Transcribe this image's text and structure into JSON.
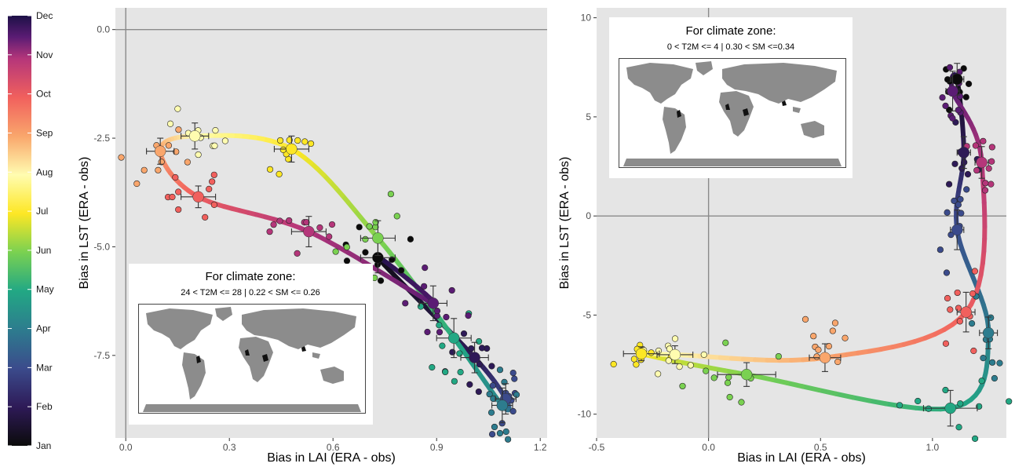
{
  "colorbar": {
    "labels": [
      "Jan",
      "Feb",
      "Mar",
      "Apr",
      "May",
      "Jun",
      "Jul",
      "Aug",
      "Sep",
      "Oct",
      "Nov",
      "Dec"
    ],
    "palette": [
      "#0b0b0b",
      "#2e1a57",
      "#3b4b8c",
      "#2d7c8e",
      "#22a884",
      "#7ad151",
      "#fde725",
      "#fffcb0",
      "#f9a66c",
      "#f1605d",
      "#b5367a",
      "#5b1c74",
      "#1d1147"
    ]
  },
  "chart_data": [
    {
      "type": "scatter",
      "xlabel": "Bias in LAI (ERA - obs)",
      "ylabel": "Bias in LST (ERA - obs)",
      "xlim": [
        -0.03,
        1.22
      ],
      "ylim": [
        -9.4,
        0.5
      ],
      "xticks": [
        "0.0",
        "0.3",
        "0.6",
        "0.9",
        "1.2"
      ],
      "xtick_values": [
        0.0,
        0.3,
        0.6,
        0.9,
        1.2
      ],
      "yticks": [
        "0.0",
        "-2.5",
        "-5.0",
        "-7.5"
      ],
      "ytick_values": [
        0.0,
        -2.5,
        -5.0,
        -7.5
      ],
      "inset": {
        "title": "For climate zone:",
        "subtitle": "24 < T2M <= 28 | 0.22 < SM <= 0.26"
      },
      "monthly_means": [
        {
          "month": "Jan",
          "x": 0.73,
          "y": -5.25,
          "xerr": 0.05,
          "yerr": 0.35
        },
        {
          "month": "Feb",
          "x": 1.01,
          "y": -7.55,
          "xerr": 0.04,
          "yerr": 0.35
        },
        {
          "month": "Mar",
          "x": 1.1,
          "y": -8.5,
          "xerr": 0.03,
          "yerr": 0.35
        },
        {
          "month": "Apr",
          "x": 1.09,
          "y": -8.65,
          "xerr": 0.03,
          "yerr": 0.4
        },
        {
          "month": "May",
          "x": 0.95,
          "y": -7.1,
          "xerr": 0.05,
          "yerr": 0.45
        },
        {
          "month": "Jun",
          "x": 0.73,
          "y": -4.8,
          "xerr": 0.05,
          "yerr": 0.4
        },
        {
          "month": "Jul",
          "x": 0.48,
          "y": -2.75,
          "xerr": 0.05,
          "yerr": 0.3
        },
        {
          "month": "Aug",
          "x": 0.2,
          "y": -2.45,
          "xerr": 0.04,
          "yerr": 0.3
        },
        {
          "month": "Sep",
          "x": 0.1,
          "y": -2.8,
          "xerr": 0.04,
          "yerr": 0.3
        },
        {
          "month": "Oct",
          "x": 0.21,
          "y": -3.85,
          "xerr": 0.05,
          "yerr": 0.25
        },
        {
          "month": "Nov",
          "x": 0.53,
          "y": -4.65,
          "xerr": 0.05,
          "yerr": 0.35
        },
        {
          "month": "Dec",
          "x": 0.89,
          "y": -6.3,
          "xerr": 0.04,
          "yerr": 0.4
        }
      ]
    },
    {
      "type": "scatter",
      "xlabel": "Bias in LAI (ERA - obs)",
      "ylabel": "Bias in LST (ERA - obs)",
      "xlim": [
        -0.5,
        1.33
      ],
      "ylim": [
        -11.2,
        10.5
      ],
      "xticks": [
        "-0.5",
        "0.0",
        "0.5",
        "1.0"
      ],
      "xtick_values": [
        -0.5,
        0.0,
        0.5,
        1.0
      ],
      "yticks": [
        "10",
        "5",
        "0",
        "-5",
        "-10"
      ],
      "ytick_values": [
        10,
        5,
        0,
        -5,
        -10
      ],
      "inset": {
        "title": "For climate zone:",
        "subtitle": "0 < T2M <= 4 | 0.30 < SM <=0.34"
      },
      "monthly_means": [
        {
          "month": "Jan",
          "x": 1.11,
          "y": 6.9,
          "xerr": 0.03,
          "yerr": 0.8
        },
        {
          "month": "Feb",
          "x": 1.14,
          "y": 3.2,
          "xerr": 0.03,
          "yerr": 0.8
        },
        {
          "month": "Mar",
          "x": 1.11,
          "y": -0.7,
          "xerr": 0.03,
          "yerr": 1.0
        },
        {
          "month": "Apr",
          "x": 1.25,
          "y": -5.9,
          "xerr": 0.04,
          "yerr": 0.8
        },
        {
          "month": "May",
          "x": 1.08,
          "y": -9.7,
          "xerr": 0.12,
          "yerr": 0.9
        },
        {
          "month": "Jun",
          "x": 0.17,
          "y": -8.0,
          "xerr": 0.13,
          "yerr": 0.6
        },
        {
          "month": "Jul",
          "x": -0.3,
          "y": -6.95,
          "xerr": 0.08,
          "yerr": 0.35
        },
        {
          "month": "Aug",
          "x": -0.15,
          "y": -7.0,
          "xerr": 0.08,
          "yerr": 0.45
        },
        {
          "month": "Sep",
          "x": 0.52,
          "y": -7.15,
          "xerr": 0.07,
          "yerr": 0.7
        },
        {
          "month": "Oct",
          "x": 1.15,
          "y": -4.85,
          "xerr": 0.04,
          "yerr": 1.0
        },
        {
          "month": "Nov",
          "x": 1.22,
          "y": 2.7,
          "xerr": 0.03,
          "yerr": 0.8
        },
        {
          "month": "Dec",
          "x": 1.09,
          "y": 6.3,
          "xerr": 0.03,
          "yerr": 1.0
        }
      ]
    }
  ]
}
